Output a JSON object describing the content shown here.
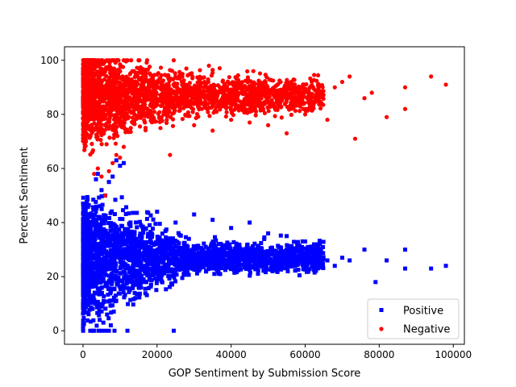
{
  "chart_data": {
    "type": "scatter",
    "title": "",
    "xlabel": "GOP Sentiment by Submission Score",
    "ylabel": "Percent Sentiment",
    "xlim": [
      -5000,
      103000
    ],
    "ylim": [
      -5,
      105
    ],
    "x_ticks": [
      0,
      20000,
      40000,
      60000,
      80000,
      100000
    ],
    "x_tick_labels": [
      "0",
      "20000",
      "40000",
      "60000",
      "80000",
      "100000"
    ],
    "y_ticks": [
      0,
      20,
      40,
      60,
      80,
      100
    ],
    "y_tick_labels": [
      "0",
      "20",
      "40",
      "60",
      "80",
      "100"
    ],
    "grid": false,
    "legend_position": "lower-right",
    "series": [
      {
        "name": "Positive",
        "color": "#0000ff",
        "marker": "square",
        "points": [
          [
            500,
            45
          ],
          [
            800,
            47
          ],
          [
            1200,
            40
          ],
          [
            2000,
            38
          ],
          [
            3000,
            0
          ],
          [
            3500,
            56
          ],
          [
            4200,
            0
          ],
          [
            5000,
            0
          ],
          [
            6000,
            0
          ],
          [
            7000,
            0
          ],
          [
            8500,
            0
          ],
          [
            12000,
            0
          ],
          [
            24500,
            0
          ],
          [
            4000,
            58
          ],
          [
            5000,
            52
          ],
          [
            6000,
            50
          ],
          [
            7000,
            55
          ],
          [
            8000,
            57
          ],
          [
            9000,
            63
          ],
          [
            10000,
            61
          ],
          [
            11000,
            62
          ],
          [
            4500,
            4
          ],
          [
            5500,
            3
          ],
          [
            6500,
            6
          ],
          [
            7500,
            2
          ],
          [
            20000,
            44
          ],
          [
            25000,
            40
          ],
          [
            30000,
            43
          ],
          [
            35000,
            41
          ],
          [
            40000,
            38
          ],
          [
            45000,
            40
          ],
          [
            50000,
            36
          ],
          [
            55000,
            35
          ],
          [
            60000,
            33
          ],
          [
            64000,
            32
          ],
          [
            66000,
            26
          ],
          [
            68000,
            24
          ],
          [
            70000,
            27
          ],
          [
            72000,
            26
          ],
          [
            76000,
            30
          ],
          [
            79000,
            18
          ],
          [
            82000,
            26
          ],
          [
            87000,
            30
          ],
          [
            87000,
            23
          ],
          [
            94000,
            23
          ],
          [
            98000,
            24
          ]
        ],
        "cloud": {
          "x_min": 0,
          "x_max": 65000,
          "y_center": 27,
          "y_spread_near_zero": 20,
          "y_spread_far": 5
        }
      },
      {
        "name": "Negative",
        "color": "#ff0000",
        "marker": "circle",
        "points": [
          [
            500,
            74
          ],
          [
            1000,
            76
          ],
          [
            2500,
            66
          ],
          [
            3000,
            58
          ],
          [
            4000,
            60
          ],
          [
            5000,
            57
          ],
          [
            6000,
            50
          ],
          [
            7000,
            59
          ],
          [
            8000,
            62
          ],
          [
            9000,
            65
          ],
          [
            10000,
            64
          ],
          [
            11000,
            68
          ],
          [
            23500,
            65
          ],
          [
            30000,
            76
          ],
          [
            35000,
            74
          ],
          [
            40000,
            78
          ],
          [
            45000,
            77
          ],
          [
            50000,
            76
          ],
          [
            55000,
            73
          ],
          [
            60000,
            80
          ],
          [
            64000,
            84
          ],
          [
            66000,
            78
          ],
          [
            68000,
            90
          ],
          [
            70000,
            92
          ],
          [
            72000,
            94
          ],
          [
            73500,
            71
          ],
          [
            76000,
            86
          ],
          [
            78000,
            88
          ],
          [
            82000,
            79
          ],
          [
            87000,
            82
          ],
          [
            87000,
            90
          ],
          [
            94000,
            94
          ],
          [
            98000,
            91
          ],
          [
            3000,
            100
          ],
          [
            5000,
            100
          ],
          [
            7000,
            100
          ],
          [
            9000,
            100
          ],
          [
            11000,
            100
          ],
          [
            13000,
            100
          ],
          [
            15000,
            100
          ],
          [
            24500,
            100
          ],
          [
            34000,
            98
          ],
          [
            46000,
            96
          ]
        ],
        "cloud": {
          "x_min": 0,
          "x_max": 65000,
          "y_center": 87,
          "y_spread_near_zero": 15,
          "y_spread_far": 6
        }
      }
    ]
  }
}
